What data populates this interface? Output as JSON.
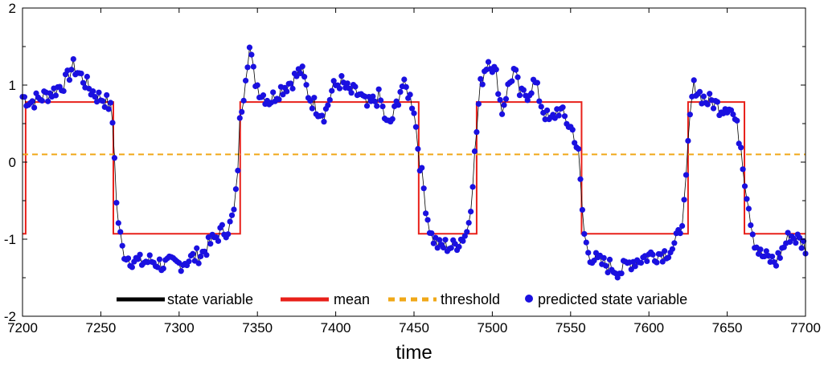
{
  "chart_data": {
    "type": "line",
    "title": "",
    "xlabel": "time",
    "ylabel": "",
    "xlim": [
      7200,
      7700
    ],
    "ylim": [
      -2,
      2
    ],
    "xticks": [
      7200,
      7250,
      7300,
      7350,
      7400,
      7450,
      7500,
      7550,
      7600,
      7650,
      7700
    ],
    "yticks": [
      -2,
      -1,
      0,
      1,
      2
    ],
    "grid": false,
    "legend_position": "bottom-center",
    "colors": {
      "state_variable": "#000000",
      "mean": "#e8201a",
      "threshold": "#f0a818",
      "predicted": "#1a10e0"
    },
    "legend": [
      "state variable",
      "mean",
      "threshold",
      "predicted state variable"
    ],
    "threshold": 0.1,
    "mean_levels": {
      "high": 0.78,
      "low": -0.93
    },
    "mean_segments": [
      {
        "x0": 7200,
        "x1": 7202,
        "level": "low"
      },
      {
        "x0": 7202,
        "x1": 7258,
        "level": "high"
      },
      {
        "x0": 7258,
        "x1": 7339,
        "level": "low"
      },
      {
        "x0": 7339,
        "x1": 7453,
        "level": "high"
      },
      {
        "x0": 7453,
        "x1": 7490,
        "level": "low"
      },
      {
        "x0": 7490,
        "x1": 7557,
        "level": "high"
      },
      {
        "x0": 7557,
        "x1": 7625,
        "level": "low"
      },
      {
        "x0": 7625,
        "x1": 7661,
        "level": "high"
      },
      {
        "x0": 7661,
        "x1": 7700,
        "level": "low"
      }
    ],
    "predicted_anchors": [
      [
        7200,
        0.85
      ],
      [
        7205,
        0.78
      ],
      [
        7210,
        0.82
      ],
      [
        7220,
        0.92
      ],
      [
        7228,
        1.05
      ],
      [
        7232,
        1.25
      ],
      [
        7238,
        1.1
      ],
      [
        7243,
        0.95
      ],
      [
        7248,
        0.85
      ],
      [
        7252,
        0.82
      ],
      [
        7256,
        0.72
      ],
      [
        7258,
        0.45
      ],
      [
        7259,
        0.0
      ],
      [
        7260,
        -0.55
      ],
      [
        7262,
        -0.9
      ],
      [
        7264,
        -1.15
      ],
      [
        7268,
        -1.25
      ],
      [
        7275,
        -1.3
      ],
      [
        7282,
        -1.28
      ],
      [
        7290,
        -1.33
      ],
      [
        7300,
        -1.32
      ],
      [
        7308,
        -1.25
      ],
      [
        7315,
        -1.18
      ],
      [
        7320,
        -1.05
      ],
      [
        7326,
        -0.92
      ],
      [
        7332,
        -0.85
      ],
      [
        7335,
        -0.65
      ],
      [
        7337,
        -0.3
      ],
      [
        7338,
        0.2
      ],
      [
        7339,
        0.6
      ],
      [
        7341,
        0.85
      ],
      [
        7343,
        1.25
      ],
      [
        7345,
        1.48
      ],
      [
        7348,
        1.1
      ],
      [
        7352,
        0.9
      ],
      [
        7358,
        0.8
      ],
      [
        7365,
        0.95
      ],
      [
        7372,
        1.05
      ],
      [
        7378,
        1.2
      ],
      [
        7383,
        0.85
      ],
      [
        7388,
        0.7
      ],
      [
        7393,
        0.62
      ],
      [
        7398,
        0.95
      ],
      [
        7403,
        1.05
      ],
      [
        7408,
        0.92
      ],
      [
        7415,
        0.88
      ],
      [
        7420,
        0.72
      ],
      [
        7428,
        0.85
      ],
      [
        7433,
        0.45
      ],
      [
        7437,
        0.6
      ],
      [
        7442,
        1.0
      ],
      [
        7446,
        0.92
      ],
      [
        7450,
        0.7
      ],
      [
        7452,
        0.3
      ],
      [
        7454,
        -0.05
      ],
      [
        7456,
        -0.3
      ],
      [
        7458,
        -0.65
      ],
      [
        7461,
        -0.95
      ],
      [
        7466,
        -1.1
      ],
      [
        7470,
        -1.08
      ],
      [
        7475,
        -1.1
      ],
      [
        7480,
        -1.0
      ],
      [
        7484,
        -0.9
      ],
      [
        7486,
        -0.6
      ],
      [
        7488,
        -0.1
      ],
      [
        7490,
        0.4
      ],
      [
        7492,
        0.95
      ],
      [
        7495,
        1.2
      ],
      [
        7498,
        1.35
      ],
      [
        7503,
        1.1
      ],
      [
        7506,
        0.65
      ],
      [
        7509,
        0.9
      ],
      [
        7514,
        1.2
      ],
      [
        7518,
        0.85
      ],
      [
        7523,
        0.9
      ],
      [
        7527,
        1.05
      ],
      [
        7532,
        0.7
      ],
      [
        7537,
        0.5
      ],
      [
        7542,
        0.7
      ],
      [
        7547,
        0.55
      ],
      [
        7552,
        0.38
      ],
      [
        7555,
        0.1
      ],
      [
        7557,
        -0.5
      ],
      [
        7559,
        -1.0
      ],
      [
        7562,
        -1.2
      ],
      [
        7568,
        -1.3
      ],
      [
        7575,
        -1.35
      ],
      [
        7582,
        -1.42
      ],
      [
        7588,
        -1.3
      ],
      [
        7595,
        -1.25
      ],
      [
        7602,
        -1.2
      ],
      [
        7610,
        -1.18
      ],
      [
        7616,
        -1.1
      ],
      [
        7619,
        -0.95
      ],
      [
        7621,
        -0.75
      ],
      [
        7623,
        -0.5
      ],
      [
        7624,
        -0.2
      ],
      [
        7625,
        0.2
      ],
      [
        7627,
        0.78
      ],
      [
        7629,
        1.0
      ],
      [
        7632,
        0.9
      ],
      [
        7636,
        0.8
      ],
      [
        7641,
        0.78
      ],
      [
        7646,
        0.7
      ],
      [
        7651,
        0.75
      ],
      [
        7655,
        0.55
      ],
      [
        7659,
        0.2
      ],
      [
        7661,
        -0.2
      ],
      [
        7664,
        -0.6
      ],
      [
        7667,
        -1.0
      ],
      [
        7671,
        -1.2
      ],
      [
        7676,
        -1.25
      ],
      [
        7681,
        -1.3
      ],
      [
        7686,
        -1.1
      ],
      [
        7690,
        -0.95
      ],
      [
        7695,
        -1.0
      ],
      [
        7700,
        -1.1
      ]
    ]
  }
}
